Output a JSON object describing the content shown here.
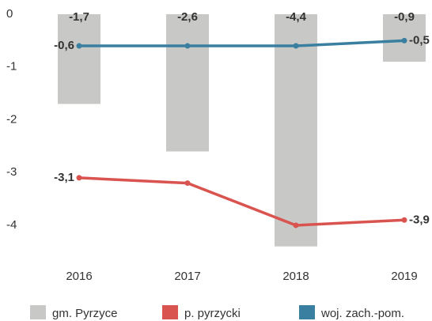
{
  "chart_data": {
    "type": "bar-line",
    "categories": [
      "2016",
      "2017",
      "2018",
      "2019"
    ],
    "series": [
      {
        "name": "gm. Pyrzyce",
        "type": "bar",
        "color": "#c8c8c6",
        "values": [
          -1.7,
          -2.6,
          -4.4,
          -0.9
        ],
        "value_labels": [
          "-1,7",
          "-2,6",
          "-4,4",
          "-0,9"
        ]
      },
      {
        "name": "p. pyrzycki",
        "type": "line",
        "color": "#d9534f",
        "values": [
          -3.1,
          -3.2,
          -4.0,
          -3.9
        ],
        "value_labels": [
          "-3,1",
          null,
          null,
          "-3,9"
        ]
      },
      {
        "name": "woj. zach.-pom.",
        "type": "line",
        "color": "#3a7fa0",
        "values": [
          -0.6,
          -0.6,
          -0.6,
          -0.5
        ],
        "value_labels": [
          "-0,6",
          null,
          null,
          "-0,5"
        ]
      }
    ],
    "ylim": [
      -4.6,
      0.15
    ],
    "yticks": [
      0,
      -1,
      -2,
      -3,
      -4
    ],
    "grid": false
  }
}
